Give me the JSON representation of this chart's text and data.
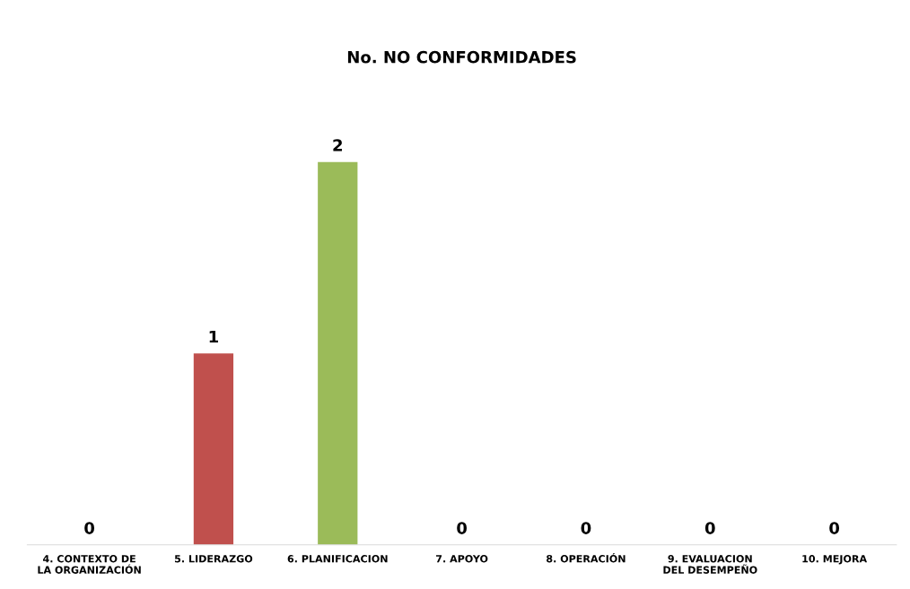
{
  "chart_data": {
    "type": "bar",
    "title": "No. NO CONFORMIDADES",
    "categories": [
      "4. CONTEXTO DE LA ORGANIZACIÓN",
      "5. LIDERAZGO",
      "6. PLANIFICACION",
      "7. APOYO",
      "8. OPERACIÓN",
      "9. EVALUACION DEL DESEMPEÑO",
      "10. MEJORA"
    ],
    "values": [
      0,
      1,
      2,
      0,
      0,
      0,
      0
    ],
    "colors": [
      "#4f81bd",
      "#c0504d",
      "#9bbb59",
      "#4f81bd",
      "#4f81bd",
      "#4f81bd",
      "#4f81bd"
    ],
    "data_labels": true,
    "grid": false
  }
}
